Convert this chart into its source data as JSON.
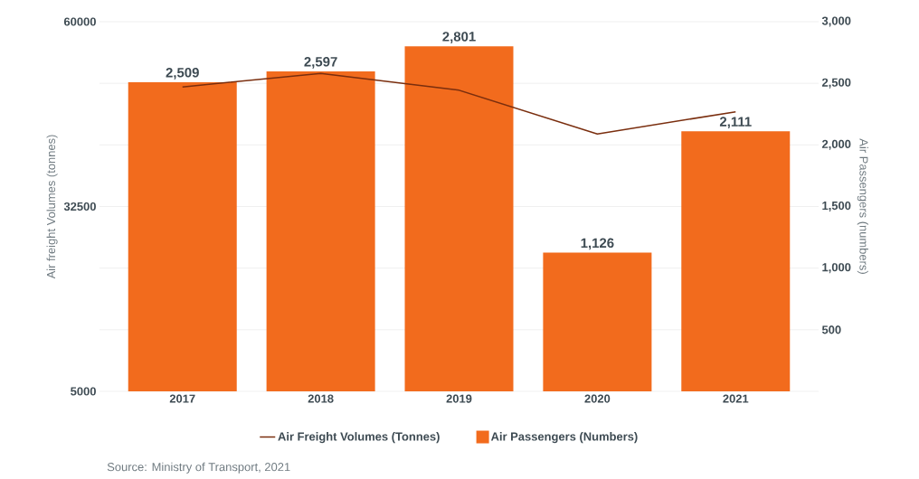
{
  "chart_data": {
    "type": "bar",
    "categories": [
      "2017",
      "2018",
      "2019",
      "2020",
      "2021"
    ],
    "series": [
      {
        "name": "Air Freight Volumes (Tonnes)",
        "type": "line",
        "color": "#7a2e0e",
        "values": [
          50300,
          52300,
          49800,
          43300,
          46600
        ]
      },
      {
        "name": "Air Passengers (Numbers)",
        "axis": "y2",
        "color": "#f26b1d",
        "values": [
          2509,
          2597,
          2801,
          1126,
          2111
        ],
        "value_labels": [
          "2,509",
          "2,597",
          "2,801",
          "1,126",
          "2,111"
        ]
      }
    ],
    "ylabel": "Air freight Volumes (tonnes)",
    "y2label": "Air Passengers (numbers)",
    "ylim": [
      5000,
      60000
    ],
    "yticks": [
      5000,
      32500,
      60000
    ],
    "y2lim": [
      0,
      3000
    ],
    "y2ticks": [
      {
        "value": 500,
        "label": "500"
      },
      {
        "value": 1000,
        "label": "1,000"
      },
      {
        "value": 1500,
        "label": "1,500"
      },
      {
        "value": 2000,
        "label": "2,000"
      },
      {
        "value": 2500,
        "label": "2,500"
      },
      {
        "value": 3000,
        "label": "3,000"
      }
    ],
    "grid": "y",
    "legend": "bottom",
    "annotations": [
      "Source: Ministry of Transport, 2021"
    ]
  }
}
